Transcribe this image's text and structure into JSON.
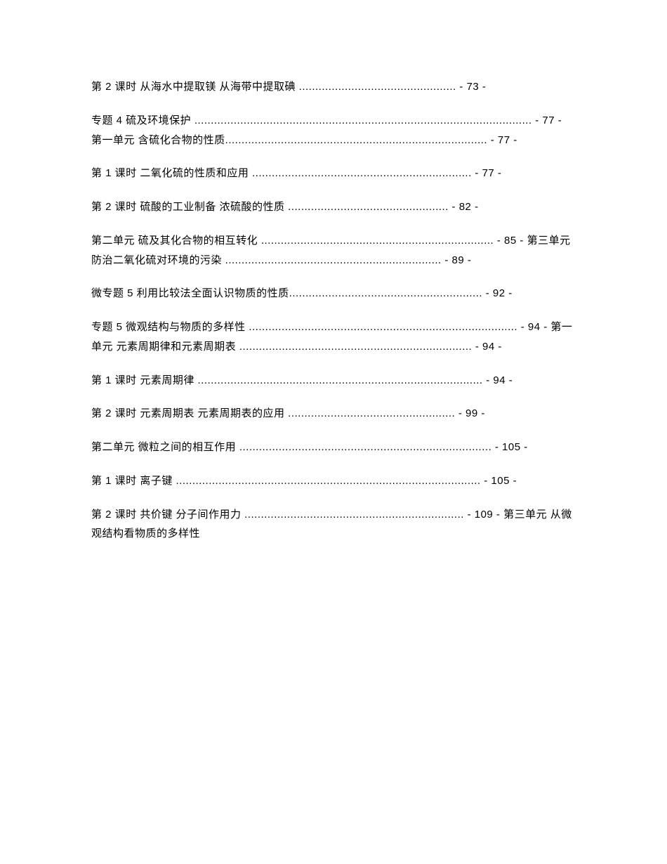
{
  "entries": [
    {
      "text": "第 2 课时 从海水中提取镁 从海带中提取碘 ................................................ - 73 -"
    },
    {
      "text": "专题 4 硫及环境保护 ....................................................................................................... - 77 - 第一单元 含硫化合物的性质................................................................................ - 77 -"
    },
    {
      "text": "第 1 课时 二氧化硫的性质和应用 ................................................................... - 77 -"
    },
    {
      "text": "第 2 课时 硫酸的工业制备 浓硫酸的性质 ................................................. - 82 -"
    },
    {
      "text": "第二单元 硫及其化合物的相互转化 ....................................................................... - 85 - 第三单元 防治二氧化硫对环境的污染 .................................................................. - 89 -"
    },
    {
      "text": "微专题 5 利用比较法全面认识物质的性质........................................................... - 92 -"
    },
    {
      "text": "专题 5 微观结构与物质的多样性 .................................................................................. - 94 - 第一单元 元素周期律和元素周期表 ....................................................................... - 94 -"
    },
    {
      "text": "第 1 课时 元素周期律 ....................................................................................... - 94 -"
    },
    {
      "text": "第 2 课时 元素周期表 元素周期表的应用 ................................................... - 99 -"
    },
    {
      "text": "第二单元 微粒之间的相互作用 ............................................................................. - 105 -"
    },
    {
      "text": "第 1 课时 离子键 ............................................................................................. - 105 -"
    },
    {
      "text": "第 2 课时 共价键 分子间作用力 ................................................................... - 109 - 第三单元 从微观结构看物质的多样性"
    }
  ]
}
